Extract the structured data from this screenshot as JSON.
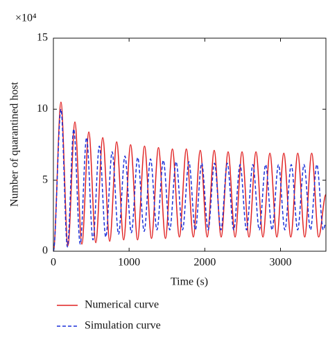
{
  "chart_data": {
    "type": "line",
    "y_scale_label": "×10⁴",
    "xlabel": "Time (s)",
    "ylabel": "Number of quarantined host",
    "xlim": [
      0,
      3600
    ],
    "xticks": [
      0,
      1000,
      2000,
      3000
    ],
    "ylim": [
      0,
      15
    ],
    "yticks": [
      0,
      5,
      10,
      15
    ],
    "legend": "bottom",
    "series": [
      {
        "name": "Numerical curve",
        "color": "#e02020",
        "style": "solid",
        "x": [
          0,
          100,
          192,
          284,
          376,
          468,
          560,
          652,
          744,
          836,
          928,
          1020,
          1112,
          1204,
          1296,
          1388,
          1480,
          1572,
          1664,
          1756,
          1848,
          1940,
          2032,
          2124,
          2216,
          2308,
          2400,
          2492,
          2584,
          2676,
          2768,
          2860,
          2952,
          3044,
          3136,
          3228,
          3320,
          3412,
          3504,
          3600
        ],
        "values": [
          0,
          10.5,
          0.4,
          9.1,
          0.5,
          8.4,
          0.6,
          8.0,
          0.7,
          7.7,
          0.8,
          7.5,
          0.8,
          7.4,
          0.9,
          7.3,
          0.9,
          7.2,
          1.0,
          7.2,
          1.0,
          7.1,
          1.0,
          7.1,
          1.0,
          7.0,
          1.0,
          7.0,
          1.0,
          7.0,
          1.0,
          6.9,
          1.0,
          6.9,
          1.0,
          6.9,
          1.0,
          6.9,
          1.0,
          4.0
        ]
      },
      {
        "name": "Simulation curve",
        "color": "#1a2fd8",
        "style": "dashed",
        "x": [
          0,
          100,
          185,
          269,
          354,
          438,
          523,
          607,
          692,
          776,
          861,
          945,
          1030,
          1114,
          1199,
          1283,
          1368,
          1452,
          1537,
          1621,
          1706,
          1790,
          1875,
          1959,
          2044,
          2128,
          2213,
          2297,
          2382,
          2466,
          2551,
          2635,
          2720,
          2804,
          2889,
          2973,
          3058,
          3142,
          3227,
          3311,
          3396,
          3480,
          3565,
          3600
        ],
        "values": [
          0,
          10.0,
          0.3,
          8.6,
          0.5,
          8.0,
          0.8,
          7.4,
          1.0,
          7.0,
          1.2,
          6.7,
          1.3,
          6.6,
          1.4,
          6.5,
          1.5,
          6.4,
          1.5,
          6.3,
          1.5,
          6.3,
          1.5,
          6.2,
          1.5,
          6.2,
          1.5,
          6.2,
          1.5,
          6.1,
          1.5,
          6.1,
          1.5,
          6.1,
          1.5,
          6.1,
          1.5,
          6.1,
          1.5,
          6.1,
          1.5,
          6.1,
          1.5,
          2.0
        ]
      }
    ]
  }
}
